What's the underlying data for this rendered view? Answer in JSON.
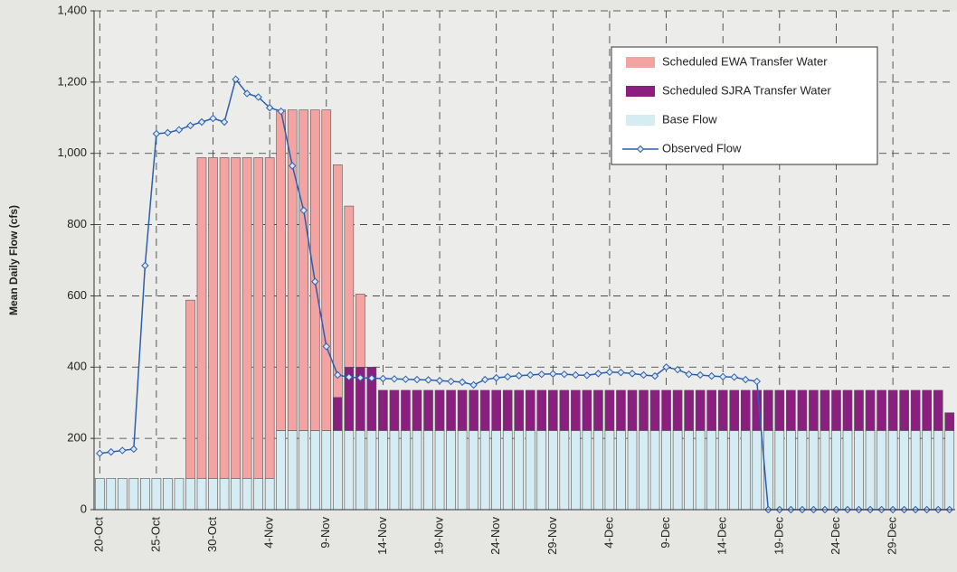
{
  "chart_data": {
    "type": "stacked_bar_line",
    "y_label": "Mean Daily Flow (cfs)",
    "categories": [
      "20-Oct",
      null,
      null,
      null,
      null,
      "25-Oct",
      null,
      null,
      null,
      null,
      "30-Oct",
      null,
      null,
      null,
      null,
      "4-Nov",
      null,
      null,
      null,
      null,
      "9-Nov",
      null,
      null,
      null,
      null,
      "14-Nov",
      null,
      null,
      null,
      null,
      "19-Nov",
      null,
      null,
      null,
      null,
      "24-Nov",
      null,
      null,
      null,
      null,
      "29-Nov",
      null,
      null,
      null,
      null,
      "4-Dec",
      null,
      null,
      null,
      null,
      "9-Dec",
      null,
      null,
      null,
      null,
      "14-Dec",
      null,
      null,
      null,
      null,
      "19-Dec",
      null,
      null,
      null,
      null,
      "24-Dec",
      null,
      null,
      null,
      null,
      "29-Dec",
      null,
      null,
      null,
      null,
      null
    ],
    "series": [
      {
        "name": "Base Flow",
        "color": "#d5ecf3",
        "kind": "bar",
        "values": [
          88,
          88,
          88,
          88,
          88,
          88,
          88,
          88,
          88,
          88,
          88,
          88,
          88,
          88,
          88,
          88,
          222,
          222,
          222,
          222,
          222,
          222,
          222,
          222,
          222,
          222,
          222,
          222,
          222,
          222,
          222,
          222,
          222,
          222,
          222,
          222,
          222,
          222,
          222,
          222,
          222,
          222,
          222,
          222,
          222,
          222,
          222,
          222,
          222,
          222,
          222,
          222,
          222,
          222,
          222,
          222,
          222,
          222,
          222,
          222,
          222,
          222,
          222,
          222,
          222,
          222,
          222,
          222,
          222,
          222,
          222,
          222,
          222,
          222,
          222,
          222
        ]
      },
      {
        "name": "Scheduled SJRA Transfer Water",
        "color": "#8a1f80",
        "kind": "bar",
        "values": [
          0,
          0,
          0,
          0,
          0,
          0,
          0,
          0,
          0,
          0,
          0,
          0,
          0,
          0,
          0,
          0,
          0,
          0,
          0,
          0,
          0,
          93,
          178,
          178,
          178,
          113,
          113,
          113,
          113,
          113,
          113,
          113,
          113,
          113,
          113,
          113,
          113,
          113,
          113,
          113,
          113,
          113,
          113,
          113,
          113,
          113,
          113,
          113,
          113,
          113,
          113,
          113,
          113,
          113,
          113,
          113,
          113,
          113,
          113,
          113,
          113,
          113,
          113,
          113,
          113,
          113,
          113,
          113,
          113,
          113,
          113,
          113,
          113,
          113,
          113,
          50
        ]
      },
      {
        "name": "Scheduled EWA Transfer Water",
        "color": "#f4a3a3",
        "kind": "bar",
        "values": [
          0,
          0,
          0,
          0,
          0,
          0,
          0,
          0,
          500,
          900,
          900,
          900,
          900,
          900,
          900,
          900,
          900,
          900,
          900,
          900,
          900,
          653,
          452,
          205,
          0,
          0,
          0,
          0,
          0,
          0,
          0,
          0,
          0,
          0,
          0,
          0,
          0,
          0,
          0,
          0,
          0,
          0,
          0,
          0,
          0,
          0,
          0,
          0,
          0,
          0,
          0,
          0,
          0,
          0,
          0,
          0,
          0,
          0,
          0,
          0,
          0,
          0,
          0,
          0,
          0,
          0,
          0,
          0,
          0,
          0,
          0,
          0,
          0,
          0,
          0,
          0
        ]
      },
      {
        "name": "Observed Flow",
        "color": "#2b5fae",
        "kind": "line",
        "values": [
          158,
          162,
          166,
          170,
          685,
          1055,
          1058,
          1066,
          1078,
          1088,
          1098,
          1088,
          1208,
          1168,
          1158,
          1128,
          1118,
          965,
          840,
          640,
          458,
          378,
          372,
          370,
          369,
          368,
          367,
          366,
          365,
          364,
          362,
          360,
          358,
          350,
          365,
          370,
          373,
          376,
          378,
          380,
          381,
          380,
          378,
          377,
          382,
          386,
          385,
          382,
          378,
          375,
          400,
          393,
          380,
          378,
          375,
          373,
          372,
          365,
          360,
          0,
          0,
          0,
          0,
          0,
          0,
          0,
          0,
          0,
          0,
          0,
          0,
          0,
          0,
          0,
          0,
          0
        ]
      }
    ],
    "legend_order": [
      2,
      1,
      0,
      3
    ],
    "ylim": [
      0,
      1400
    ],
    "yticks": [
      0,
      200,
      400,
      600,
      800,
      {
        "value": 1000,
        "label": "1,000"
      },
      {
        "value": 1200,
        "label": "1,200"
      },
      {
        "value": 1400,
        "label": "1,400"
      }
    ],
    "grid": true
  }
}
